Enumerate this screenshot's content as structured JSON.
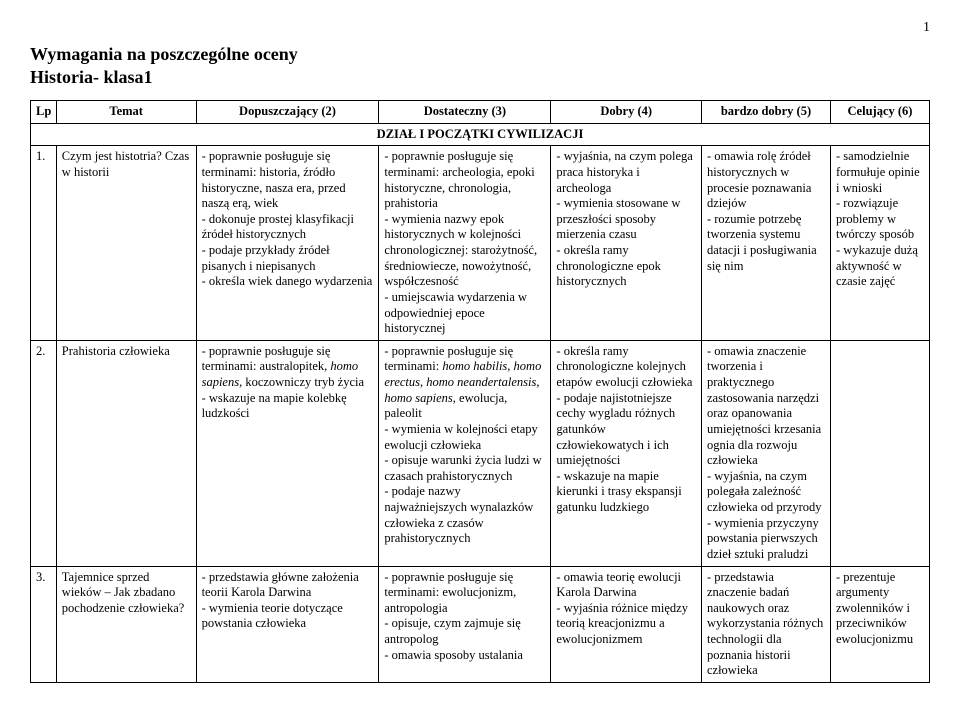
{
  "page_number": "1",
  "title": "Wymagania na poszczególne oceny",
  "subtitle": "Historia- klasa1",
  "headers": {
    "lp": "Lp",
    "temat": "Temat",
    "c2": "Dopuszczający (2)",
    "c3": "Dostateczny (3)",
    "c4": "Dobry (4)",
    "c5": "bardzo dobry (5)",
    "c6": "Celujący (6)"
  },
  "section": "DZIAŁ I POCZĄTKI CYWILIZACJI",
  "rows": [
    {
      "lp": "1.",
      "temat": "Czym jest histotria? Czas w historii",
      "c2": "- poprawnie posługuje się terminami: historia, źródło historyczne, nasza era, przed naszą erą, wiek\n- dokonuje prostej klasyfikacji źródeł historycznych\n- podaje przykłady źródeł pisanych i niepisanych\n- określa wiek danego wydarzenia",
      "c3": "- poprawnie posługuje się terminami: archeologia, epoki historyczne, chronologia, prahistoria\n- wymienia nazwy epok historycznych w kolejności chronologicznej: starożytność, średniowiecze, nowożytność, współczesność\n- umiejscawia wydarzenia w odpowiedniej epoce historycznej",
      "c4": "- wyjaśnia, na czym polega praca historyka i archeologa\n- wymienia stosowane w przeszłości sposoby mierzenia czasu\n- określa ramy chronologiczne epok historycznych",
      "c5": "- omawia rolę źródeł historycznych w procesie poznawania dziejów\n- rozumie potrzebę tworzenia systemu datacji i posługiwania się nim",
      "c6": "- samodzielnie formułuje opinie i wnioski\n- rozwiązuje problemy w twórczy sposób\n- wykazuje dużą aktywność w czasie zajęć"
    },
    {
      "lp": "2.",
      "temat": "Prahistoria człowieka",
      "c2_html": "- poprawnie posługuje się terminami: australopitek, <em>homo sapiens</em>, koczowniczy tryb życia<br>- wskazuje na mapie kolebkę ludzkości",
      "c3_html": "- poprawnie posługuje się terminami: <em>homo habilis</em>, <em>homo erectus</em>, <em>homo neandertalensis</em>, <em>homo sapiens</em>, ewolucja, paleolit<br>- wymienia w kolejności etapy ewolucji człowieka<br>- opisuje warunki życia ludzi w czasach prahistorycznych<br>- podaje nazwy najważniejszych wynalazków człowieka z czasów prahistorycznych",
      "c4": "- określa ramy chronologiczne kolejnych etapów ewolucji człowieka\n- podaje najistotniejsze cechy wygladu różnych gatunków człowiekowatych i ich umiejętności\n- wskazuje na mapie kierunki i trasy ekspansji gatunku ludzkiego",
      "c5": "- omawia znaczenie tworzenia i praktycznego zastosowania narzędzi oraz opanowania umiejętności krzesania ognia dla rozwoju człowieka\n- wyjaśnia, na czym polegała zależność człowieka od przyrody\n- wymienia przyczyny powstania pierwszych dzieł sztuki praludzi",
      "c6": ""
    },
    {
      "lp": "3.",
      "temat": "Tajemnice sprzed wieków – Jak zbadano pochodzenie człowieka?",
      "c2": "- przedstawia główne założenia teorii Karola Darwina\n- wymienia teorie dotyczące powstania człowieka",
      "c3": "- poprawnie posługuje się terminami: ewolucjonizm, antropologia\n- opisuje, czym zajmuje się antropolog\n- omawia sposoby ustalania",
      "c4": "- omawia teorię ewolucji Karola Darwina\n- wyjaśnia różnice między teorią kreacjonizmu a ewolucjonizmem",
      "c5": "- przedstawia znaczenie badań naukowych oraz wykorzystania różnych technologii dla poznania historii człowieka",
      "c6": "- prezentuje argumenty zwolenników i przeciwników ewolucjonizmu"
    }
  ]
}
